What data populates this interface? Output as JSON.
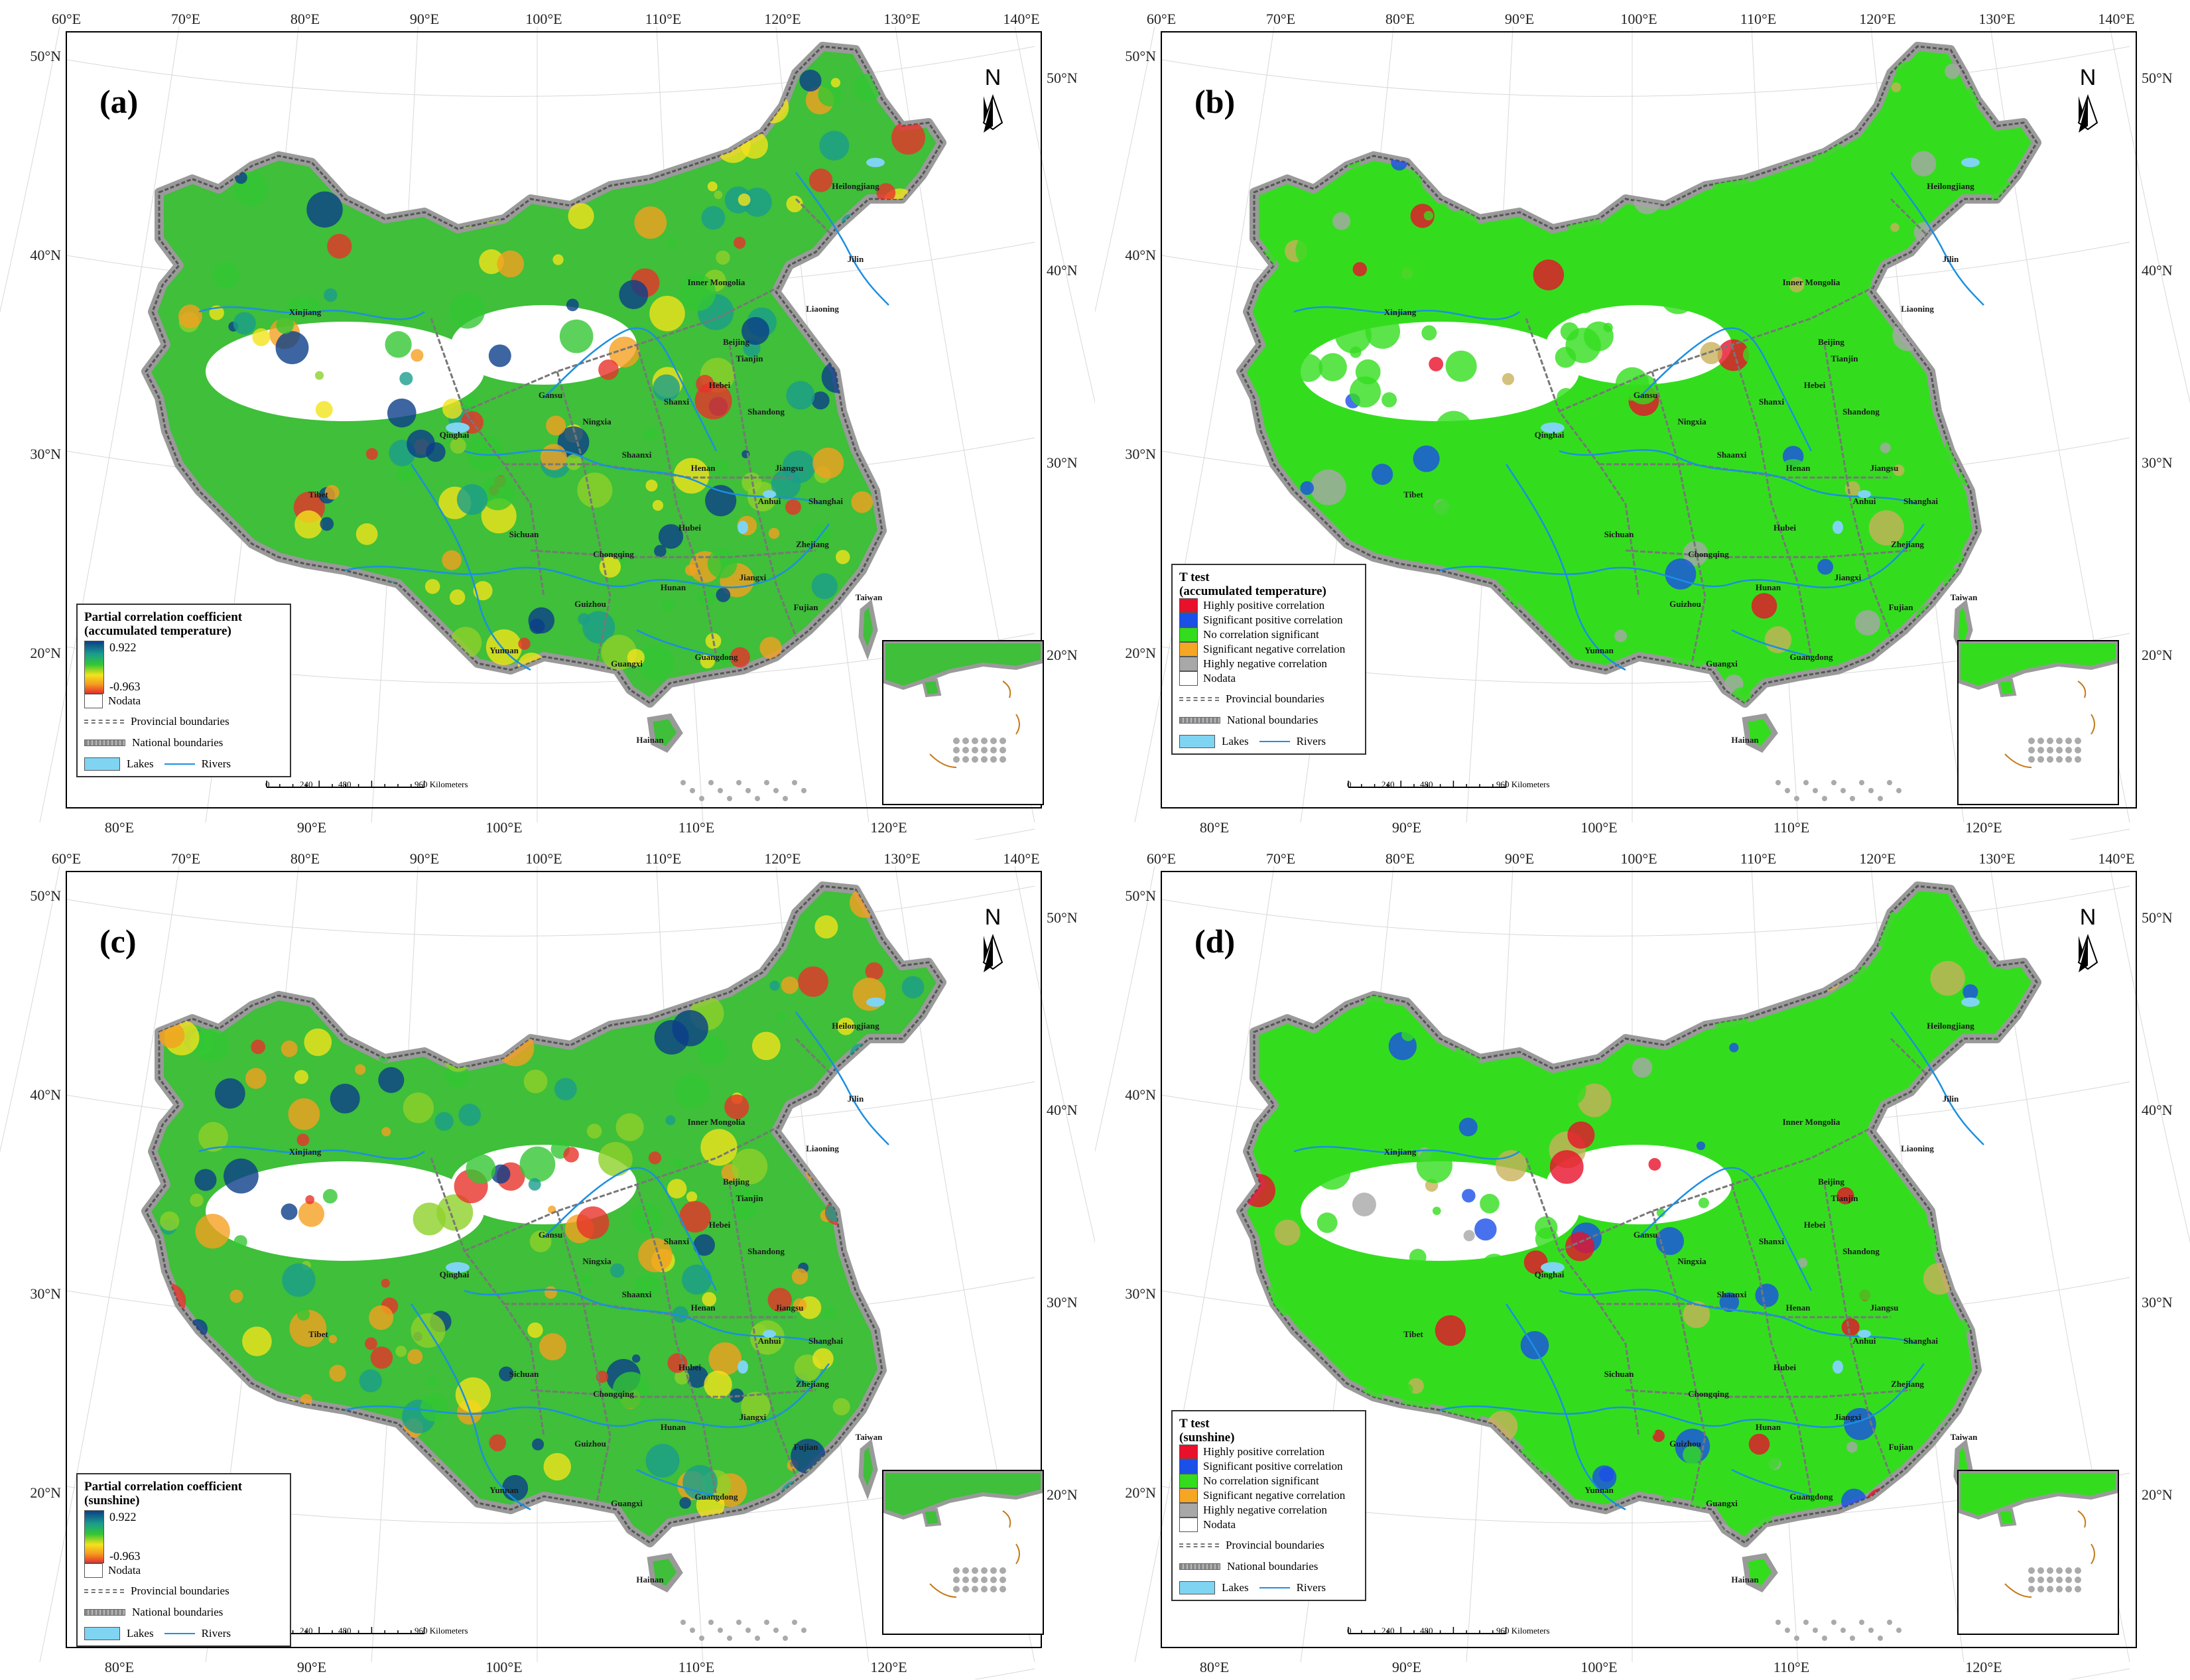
{
  "panels": [
    {
      "id": "a",
      "label": "(a)",
      "legend_type": "gradient",
      "legend_title": [
        "Partial correlation coefficient",
        "(accumulated temperature)"
      ],
      "palette": "correlation",
      "dominant": "#3fbf3a"
    },
    {
      "id": "b",
      "label": "(b)",
      "legend_type": "classes",
      "legend_title": [
        "T  test",
        "(accumulated temperature)"
      ],
      "palette": "ttest",
      "dominant": "#33dd1e"
    },
    {
      "id": "c",
      "label": "(c)",
      "legend_type": "gradient",
      "legend_title": [
        "Partial correlation coefficient",
        "(sunshine)"
      ],
      "palette": "correlation",
      "dominant": "#3fbf3a"
    },
    {
      "id": "d",
      "label": "(d)",
      "legend_type": "classes",
      "legend_title": [
        "T  test",
        "(sunshine)"
      ],
      "palette": "ttest",
      "dominant": "#33dd1e"
    }
  ],
  "gradient_legend": {
    "max": "0.922",
    "min": "-0.963",
    "nodata": "Nodata"
  },
  "ttest_classes": [
    {
      "label": "Highly positive correlation",
      "color": "#e8102a"
    },
    {
      "label": "Significant positive correlation",
      "color": "#1a4fe8"
    },
    {
      "label": "No correlation  significant",
      "color": "#33dd1e"
    },
    {
      "label": "Significant negative correlation",
      "color": "#f5a623"
    },
    {
      "label": "Highly negative correlation",
      "color": "#a8a8a8"
    },
    {
      "label": "Nodata",
      "color": "#ffffff"
    }
  ],
  "boundary_legend": {
    "provincial": "Provincial boundaries",
    "national": "National boundaries",
    "lakes": "Lakes",
    "rivers": "Rivers"
  },
  "scale": {
    "ticks": [
      "0",
      "240",
      "480",
      "960 Kilometers"
    ]
  },
  "north": "N",
  "top_lon_ticks": [
    "60°E",
    "70°E",
    "80°E",
    "90°E",
    "100°E",
    "110°E",
    "120°E",
    "130°E",
    "140°E"
  ],
  "bottom_lon_ticks": [
    "80°E",
    "90°E",
    "100°E",
    "110°E",
    "120°E"
  ],
  "left_lat_ticks": [
    "50°N",
    "40°N",
    "30°N",
    "20°N"
  ],
  "right_lat_ticks": [
    "50°N",
    "40°N",
    "30°N",
    "20°N"
  ],
  "provinces": [
    "Heilongjiang",
    "Jilin",
    "Liaoning",
    "Inner Mongolia",
    "Xinjiang",
    "Beijing",
    "Tianjin",
    "Hebei",
    "Shanxi",
    "Shandong",
    "Gansu",
    "Ningxia",
    "Qinghai",
    "Shaanxi",
    "Henan",
    "Jiangsu",
    "Anhui",
    "Shanghai",
    "Tibet",
    "Sichuan",
    "Chongqing",
    "Hubei",
    "Zhejiang",
    "Jiangxi",
    "Hunan",
    "Guizhou",
    "Fujian",
    "Yunnan",
    "Guangxi",
    "Guangdong",
    "Taiwan",
    "Hainan"
  ],
  "colors": {
    "river": "#1c8fe0",
    "lake": "#7fd4f2",
    "boundary": "#8a8a8a",
    "frame": "#000000",
    "gradient_top": "#0b3f8a",
    "gradient_bottom": "#e8322a"
  }
}
